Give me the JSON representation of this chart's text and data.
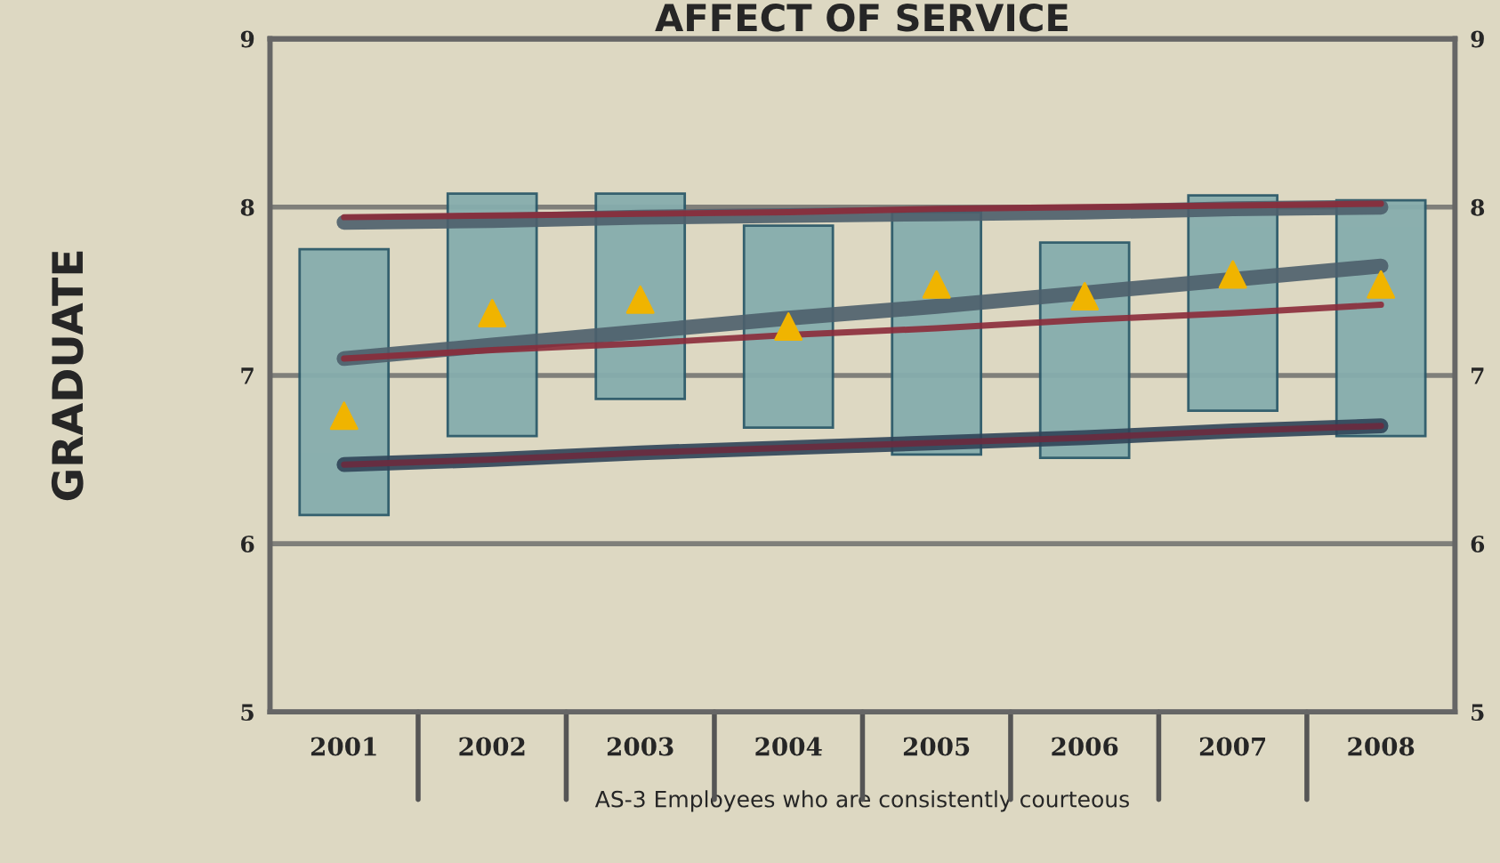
{
  "chart_data": {
    "type": "bar",
    "title": "AFFECT OF SERVICE",
    "ylabel": "GRADUATE",
    "xlabel": "AS-3 Employees who are consistently courteous",
    "categories": [
      "2001",
      "2002",
      "2003",
      "2004",
      "2005",
      "2006",
      "2007",
      "2008"
    ],
    "series": [
      {
        "color": "#86adad",
        "base": [
          6.17,
          6.64,
          6.86,
          6.69,
          6.53,
          6.51,
          6.79,
          6.64
        ],
        "values": [
          1.58,
          1.44,
          1.22,
          1.2,
          1.44,
          1.28,
          1.28,
          1.4
        ]
      },
      {
        "type": "line",
        "color": "#4d5f6c",
        "values": [
          7.91,
          7.92,
          7.94,
          7.95,
          7.96,
          7.97,
          7.99,
          8.0
        ]
      },
      {
        "type": "line",
        "color": "#8b2b3a",
        "values": [
          7.94,
          7.95,
          7.96,
          7.97,
          7.99,
          8.0,
          8.01,
          8.02
        ]
      },
      {
        "type": "line",
        "color": "#4d5f6c",
        "values": [
          7.1,
          7.18,
          7.26,
          7.34,
          7.41,
          7.49,
          7.57,
          7.65
        ]
      },
      {
        "type": "line",
        "color": "#8b2b3a",
        "values": [
          7.1,
          7.15,
          7.19,
          7.24,
          7.28,
          7.33,
          7.37,
          7.42
        ]
      },
      {
        "type": "line",
        "color": "#2f4458",
        "values": [
          6.47,
          6.5,
          6.54,
          6.57,
          6.6,
          6.63,
          6.67,
          6.7
        ]
      },
      {
        "type": "line",
        "color": "#6b2a3e",
        "values": [
          6.47,
          6.5,
          6.54,
          6.57,
          6.6,
          6.63,
          6.67,
          6.7
        ]
      },
      {
        "type": "scatter",
        "color": "#f0b400",
        "marker": "triangle",
        "values": [
          6.76,
          7.37,
          7.45,
          7.29,
          7.54,
          7.47,
          7.6,
          7.54
        ]
      }
    ],
    "ylim": [
      5,
      9
    ],
    "yticks": [
      5,
      6,
      7,
      8,
      9
    ],
    "y2lim": [
      5,
      9
    ],
    "y2ticks": [
      5,
      6,
      7,
      8,
      9
    ],
    "grid": "y",
    "legend": false
  }
}
